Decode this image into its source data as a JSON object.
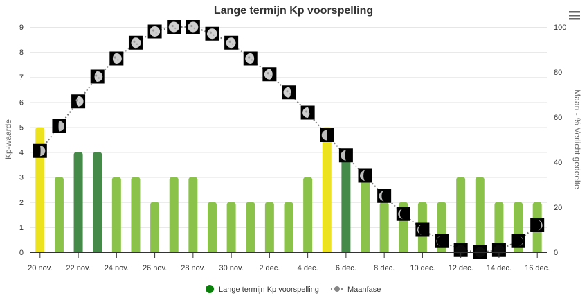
{
  "menu": {
    "icon": "hamburger-menu-icon"
  },
  "chart_data": {
    "type": "bar",
    "title": "Lange termijn Kp voorspelling",
    "xlabel": "",
    "ylabel": "Kp-waarde",
    "ylabel_right": "Maan - % Verlicht gedeelte",
    "ylim": [
      0,
      9
    ],
    "ylim_right": [
      0,
      100
    ],
    "yticks": [
      "0",
      "1",
      "2",
      "3",
      "4",
      "5",
      "6",
      "7",
      "8",
      "9"
    ],
    "yticks_right": [
      "0",
      "20",
      "40",
      "60",
      "80",
      "100"
    ],
    "grid": true,
    "legend_position": "bottom",
    "categories": [
      "20 nov.",
      "21 nov.",
      "22 nov.",
      "23 nov.",
      "24 nov.",
      "25 nov.",
      "26 nov.",
      "27 nov.",
      "28 nov.",
      "29 nov.",
      "30 nov.",
      "1 dec.",
      "2 dec.",
      "3 dec.",
      "4 dec.",
      "5 dec.",
      "6 dec.",
      "7 dec.",
      "8 dec.",
      "9 dec.",
      "10 dec.",
      "11 dec.",
      "12 dec.",
      "13 dec.",
      "14 dec.",
      "15 dec.",
      "16 dec."
    ],
    "xtick_labels": [
      "20 nov.",
      "22 nov.",
      "24 nov.",
      "26 nov.",
      "28 nov.",
      "30 nov.",
      "2 dec.",
      "4 dec.",
      "6 dec.",
      "8 dec.",
      "10 dec.",
      "12 dec.",
      "14 dec.",
      "16 dec."
    ],
    "series": [
      {
        "name": "Lange termijn Kp voorspelling",
        "type": "bar",
        "axis": "left",
        "legend_color": "#0a7f0a",
        "values": [
          5,
          3,
          4,
          4,
          3,
          3,
          2,
          3,
          3,
          2,
          2,
          2,
          2,
          2,
          3,
          5,
          4,
          3,
          2,
          2,
          2,
          2,
          3,
          3,
          2,
          2,
          2
        ]
      },
      {
        "name": "Maanfase",
        "type": "line",
        "axis": "right",
        "legend_color": "#888888",
        "values": [
          45,
          56,
          67,
          78,
          86,
          93,
          98,
          100,
          100,
          97,
          93,
          86,
          79,
          71,
          62,
          52,
          43,
          34,
          25,
          17,
          10,
          5,
          1,
          0,
          1,
          5,
          12
        ],
        "waxing": [
          true,
          true,
          true,
          true,
          true,
          true,
          true,
          true,
          true,
          false,
          false,
          false,
          false,
          false,
          false,
          false,
          false,
          false,
          false,
          false,
          false,
          false,
          false,
          false,
          true,
          true,
          true
        ]
      }
    ],
    "color_scale": [
      {
        "min": 0,
        "max": 3,
        "color": "#8bc34a"
      },
      {
        "min": 4,
        "max": 4,
        "color": "#468a4a"
      },
      {
        "min": 5,
        "max": 9,
        "color": "#ede21e"
      }
    ]
  }
}
